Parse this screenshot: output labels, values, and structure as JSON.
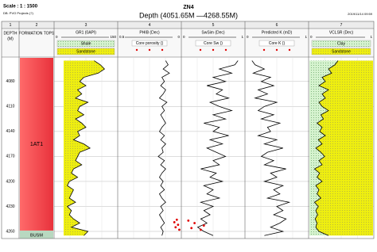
{
  "header": {
    "scale": "Scale : 1 : 1500",
    "db": "DB: PVO Projects (?)",
    "title": "ZN4",
    "subtitle": "Depth (4051.65M  —4268.55M)",
    "date": "2019/11/14 09:59"
  },
  "chart_data": {
    "type": "well-log",
    "ylim": [
      4051.65,
      4268.55
    ],
    "yticks": [
      4080,
      4110,
      4140,
      4170,
      4200,
      4230,
      4260
    ],
    "grid": true,
    "depths": [
      4055,
      4060,
      4065,
      4070,
      4075,
      4080,
      4085,
      4090,
      4095,
      4100,
      4105,
      4110,
      4115,
      4120,
      4125,
      4130,
      4135,
      4140,
      4145,
      4150,
      4155,
      4160,
      4165,
      4170,
      4175,
      4180,
      4185,
      4190,
      4195,
      4200,
      4205,
      4210,
      4215,
      4220,
      4225,
      4230,
      4235,
      4240,
      4245,
      4250,
      4255,
      4260,
      4265
    ],
    "tracks": [
      {
        "type": "depth",
        "number": "1",
        "name": "DEPTH",
        "unit": "(M)"
      },
      {
        "type": "tops",
        "number": "2",
        "name": "FORMATION TOPS",
        "tops": [
          {
            "name": "1AT1",
            "top": 4051.65,
            "base": 4259,
            "color": "#e8323c"
          },
          {
            "name": "BUSM",
            "top": 4259,
            "base": 4268.55,
            "color": "#b8d8c0"
          }
        ]
      },
      {
        "type": "curve",
        "number": "3",
        "name": "GR1 (0API)",
        "xlim": [
          0,
          150
        ],
        "color": "#000000",
        "fill": "sand-left",
        "legend": [
          {
            "name": "Shale",
            "style": "shale"
          },
          {
            "name": "Sandstone",
            "style": "sand"
          }
        ],
        "values": [
          95,
          110,
          120,
          105,
          70,
          60,
          75,
          55,
          65,
          50,
          80,
          60,
          55,
          70,
          50,
          65,
          75,
          55,
          60,
          45,
          70,
          85,
          60,
          55,
          50,
          65,
          45,
          40,
          55,
          35,
          30,
          45,
          40,
          35,
          50,
          30,
          40,
          35,
          45,
          60,
          40,
          80,
          70
        ]
      },
      {
        "type": "curve",
        "number": "4",
        "name": "PHIB (Dec)",
        "xlim": [
          0.5,
          0
        ],
        "color": "#000000",
        "legend": [
          {
            "name": "Core porosity ()",
            "style": "points"
          }
        ],
        "points": {
          "color": "#e00000",
          "depths": [
            4246,
            4249,
            4252,
            4255,
            4258
          ],
          "values": [
            0.03,
            0.05,
            0.02,
            0.04,
            0.01
          ]
        },
        "values": [
          0.12,
          0.1,
          0.14,
          0.09,
          0.15,
          0.13,
          0.16,
          0.12,
          0.14,
          0.17,
          0.11,
          0.15,
          0.13,
          0.16,
          0.14,
          0.12,
          0.15,
          0.17,
          0.13,
          0.16,
          0.12,
          0.15,
          0.14,
          0.18,
          0.13,
          0.16,
          0.12,
          0.15,
          0.17,
          0.14,
          0.16,
          0.13,
          0.17,
          0.15,
          0.12,
          0.16,
          0.14,
          0.17,
          0.15,
          0.13,
          0.16,
          0.14,
          0.15
        ]
      },
      {
        "type": "curve",
        "number": "5",
        "name": "SwSim (Dec)",
        "xlim": [
          0,
          1
        ],
        "color": "#000000",
        "legend": [
          {
            "name": "Core Sw ()",
            "style": "points"
          }
        ],
        "points": {
          "color": "#e00000",
          "depths": [
            4247,
            4250,
            4253,
            4256,
            4258
          ],
          "values": [
            0.1,
            0.2,
            0.35,
            0.15,
            0.3
          ]
        },
        "values": [
          0.9,
          0.85,
          0.6,
          0.8,
          0.5,
          0.7,
          0.4,
          0.65,
          0.55,
          0.75,
          0.45,
          0.6,
          0.8,
          0.5,
          0.7,
          0.35,
          0.6,
          0.5,
          0.75,
          0.45,
          0.65,
          0.4,
          0.55,
          0.7,
          0.5,
          0.6,
          0.3,
          0.55,
          0.45,
          0.65,
          0.35,
          0.5,
          0.4,
          0.6,
          0.3,
          0.5,
          0.35,
          0.45,
          0.3,
          0.4,
          0.25,
          0.35,
          0.5
        ]
      },
      {
        "type": "curve",
        "number": "6",
        "name": "Predicted K (mD)",
        "xlim": [
          0,
          1
        ],
        "color": "#000000",
        "legend": [
          {
            "name": "Core K ()",
            "style": "points"
          }
        ],
        "values": [
          0.1,
          0.15,
          0.3,
          0.12,
          0.4,
          0.25,
          0.45,
          0.2,
          0.35,
          0.15,
          0.5,
          0.3,
          0.2,
          0.45,
          0.25,
          0.55,
          0.35,
          0.4,
          0.2,
          0.5,
          0.3,
          0.6,
          0.35,
          0.25,
          0.45,
          0.3,
          0.65,
          0.4,
          0.5,
          0.3,
          0.6,
          0.45,
          0.55,
          0.35,
          0.7,
          0.5,
          0.6,
          0.45,
          0.65,
          0.55,
          0.4,
          0.6,
          0.3
        ]
      },
      {
        "type": "curve",
        "number": "7",
        "name": "VCLSR (Dec)",
        "xlim": [
          0,
          1
        ],
        "color": "#000000",
        "fill": "clay-sand",
        "legend": [
          {
            "name": "Clay",
            "style": "shale"
          },
          {
            "name": "Sandstone",
            "style": "sand"
          }
        ],
        "values": [
          0.45,
          0.4,
          0.3,
          0.35,
          0.2,
          0.25,
          0.15,
          0.3,
          0.2,
          0.25,
          0.15,
          0.2,
          0.3,
          0.18,
          0.22,
          0.12,
          0.2,
          0.16,
          0.25,
          0.14,
          0.2,
          0.1,
          0.18,
          0.24,
          0.15,
          0.2,
          0.08,
          0.16,
          0.12,
          0.2,
          0.1,
          0.15,
          0.12,
          0.18,
          0.08,
          0.14,
          0.1,
          0.13,
          0.09,
          0.12,
          0.1,
          0.15,
          0.3
        ]
      }
    ]
  }
}
